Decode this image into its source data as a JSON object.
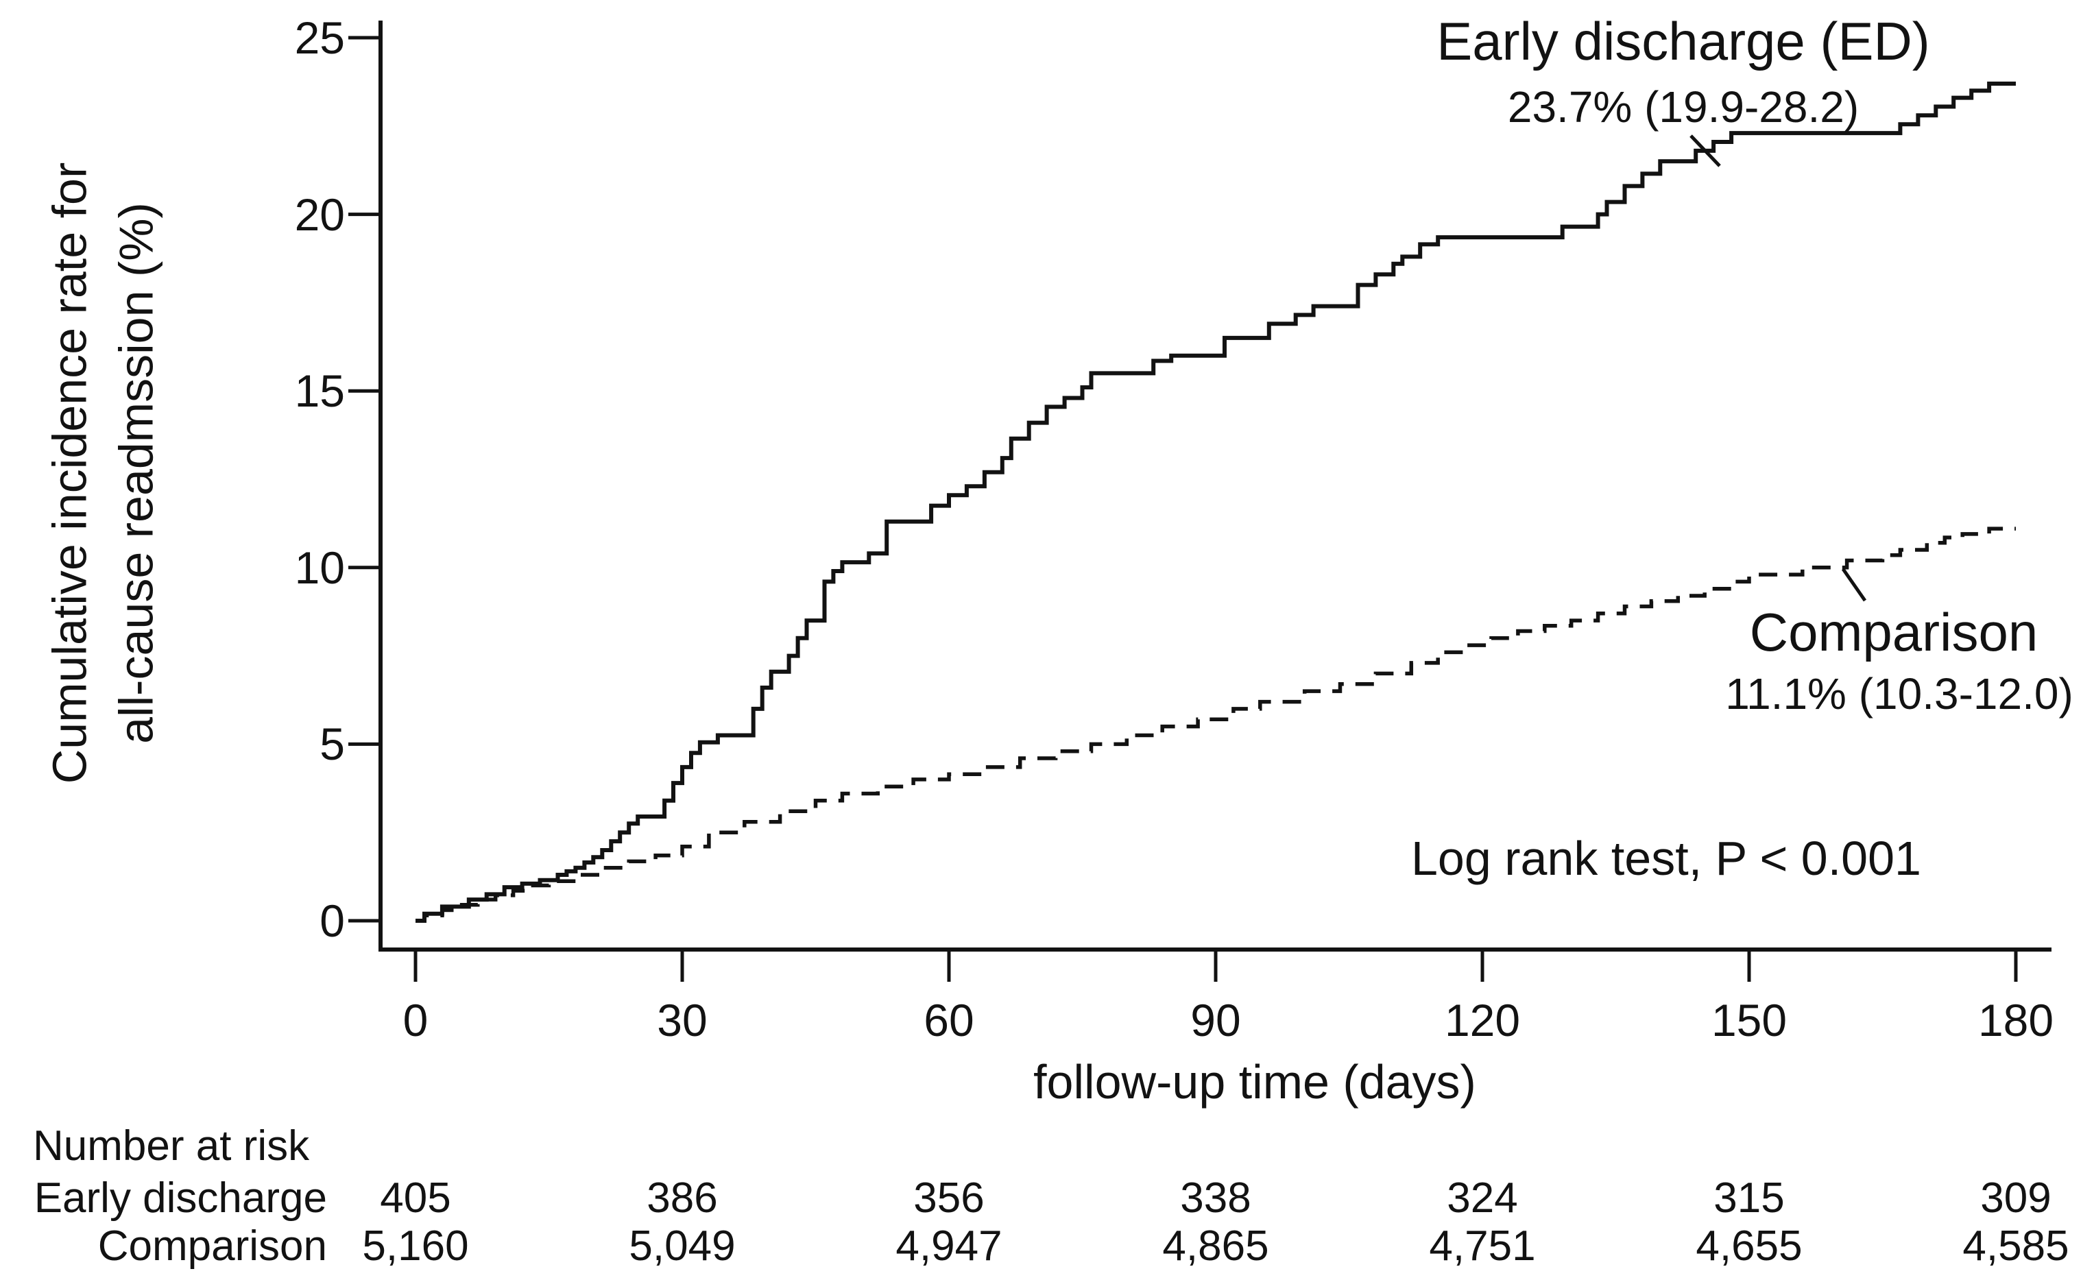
{
  "chart_data": {
    "type": "line",
    "variant": "cumulative-incidence-step-curves",
    "title": "",
    "xlabel": "follow-up time (days)",
    "ylabel": "Cumulative incidence rate for all-cause readmssion (%)",
    "ylabel_lines": [
      "Cumulative incidence rate for",
      "all-cause readmssion (%)"
    ],
    "xlim": [
      0,
      180
    ],
    "ylim": [
      0,
      25
    ],
    "x_ticks": [
      0,
      30,
      60,
      90,
      120,
      150,
      180
    ],
    "y_ticks": [
      0,
      5,
      10,
      15,
      20,
      25
    ],
    "grid": false,
    "legend_position": "annotated-on-plot",
    "line_color": "#121212",
    "annotations": {
      "ed_label": "Early discharge (ED)",
      "ed_value": "23.7% (19.9-28.2)",
      "comparison_label": "Comparison",
      "comparison_value": "11.1% (10.3-12.0)",
      "stat_test": "Log rank test, P < 0.001"
    },
    "series": [
      {
        "name": "Early discharge (ED)",
        "line_style": "solid",
        "color": "#121212",
        "estimate_at_180": 23.7,
        "ci_95": [
          19.9,
          28.2
        ],
        "points": [
          [
            0,
            0
          ],
          [
            1,
            0.2
          ],
          [
            3,
            0.4
          ],
          [
            6,
            0.6
          ],
          [
            8,
            0.75
          ],
          [
            10,
            0.95
          ],
          [
            12,
            1.05
          ],
          [
            14,
            1.15
          ],
          [
            16,
            1.3
          ],
          [
            17,
            1.4
          ],
          [
            18,
            1.5
          ],
          [
            19,
            1.65
          ],
          [
            20,
            1.8
          ],
          [
            21,
            2.0
          ],
          [
            22,
            2.25
          ],
          [
            23,
            2.5
          ],
          [
            24,
            2.75
          ],
          [
            25,
            2.95
          ],
          [
            28,
            3.4
          ],
          [
            29,
            3.9
          ],
          [
            30,
            4.35
          ],
          [
            31,
            4.75
          ],
          [
            32,
            5.05
          ],
          [
            34,
            5.25
          ],
          [
            38,
            6.0
          ],
          [
            39,
            6.6
          ],
          [
            40,
            7.05
          ],
          [
            42,
            7.5
          ],
          [
            43,
            8.0
          ],
          [
            44,
            8.5
          ],
          [
            46,
            9.6
          ],
          [
            47,
            9.9
          ],
          [
            48,
            10.15
          ],
          [
            51,
            10.4
          ],
          [
            53,
            11.3
          ],
          [
            58,
            11.75
          ],
          [
            60,
            12.05
          ],
          [
            62,
            12.3
          ],
          [
            64,
            12.7
          ],
          [
            66,
            13.1
          ],
          [
            67,
            13.65
          ],
          [
            69,
            14.1
          ],
          [
            71,
            14.55
          ],
          [
            73,
            14.8
          ],
          [
            75,
            15.1
          ],
          [
            76,
            15.5
          ],
          [
            83,
            15.85
          ],
          [
            85,
            16.0
          ],
          [
            91,
            16.5
          ],
          [
            96,
            16.9
          ],
          [
            99,
            17.15
          ],
          [
            101,
            17.4
          ],
          [
            106,
            18.0
          ],
          [
            108,
            18.3
          ],
          [
            110,
            18.6
          ],
          [
            111,
            18.8
          ],
          [
            113,
            19.15
          ],
          [
            115,
            19.35
          ],
          [
            129,
            19.65
          ],
          [
            133,
            20.0
          ],
          [
            134,
            20.35
          ],
          [
            136,
            20.8
          ],
          [
            138,
            21.15
          ],
          [
            140,
            21.5
          ],
          [
            144,
            21.8
          ],
          [
            146,
            22.05
          ],
          [
            148,
            22.3
          ],
          [
            167,
            22.55
          ],
          [
            169,
            22.8
          ],
          [
            171,
            23.05
          ],
          [
            173,
            23.3
          ],
          [
            175,
            23.5
          ],
          [
            177,
            23.7
          ],
          [
            180,
            23.7
          ]
        ]
      },
      {
        "name": "Comparison",
        "line_style": "dashed",
        "color": "#121212",
        "estimate_at_180": 11.1,
        "ci_95": [
          10.3,
          12.0
        ],
        "points": [
          [
            0,
            0
          ],
          [
            1,
            0.15
          ],
          [
            3,
            0.3
          ],
          [
            5,
            0.45
          ],
          [
            7,
            0.6
          ],
          [
            9,
            0.72
          ],
          [
            11,
            0.85
          ],
          [
            13,
            1.0
          ],
          [
            15,
            1.12
          ],
          [
            18,
            1.3
          ],
          [
            21,
            1.5
          ],
          [
            24,
            1.68
          ],
          [
            27,
            1.85
          ],
          [
            30,
            2.1
          ],
          [
            33,
            2.5
          ],
          [
            37,
            2.8
          ],
          [
            41,
            3.1
          ],
          [
            45,
            3.4
          ],
          [
            48,
            3.6
          ],
          [
            52,
            3.8
          ],
          [
            56,
            4.0
          ],
          [
            60,
            4.15
          ],
          [
            64,
            4.35
          ],
          [
            68,
            4.6
          ],
          [
            72,
            4.8
          ],
          [
            76,
            5.0
          ],
          [
            80,
            5.25
          ],
          [
            84,
            5.5
          ],
          [
            88,
            5.7
          ],
          [
            92,
            6.0
          ],
          [
            95,
            6.2
          ],
          [
            100,
            6.5
          ],
          [
            104,
            6.7
          ],
          [
            108,
            7.0
          ],
          [
            112,
            7.3
          ],
          [
            115,
            7.6
          ],
          [
            118,
            7.8
          ],
          [
            121,
            8.0
          ],
          [
            124,
            8.2
          ],
          [
            127,
            8.35
          ],
          [
            130,
            8.5
          ],
          [
            133,
            8.7
          ],
          [
            136,
            8.9
          ],
          [
            139,
            9.05
          ],
          [
            142,
            9.2
          ],
          [
            145,
            9.4
          ],
          [
            148,
            9.6
          ],
          [
            150,
            9.8
          ],
          [
            156,
            10.0
          ],
          [
            161,
            10.2
          ],
          [
            165,
            10.35
          ],
          [
            167,
            10.5
          ],
          [
            170,
            10.7
          ],
          [
            172,
            10.85
          ],
          [
            174,
            10.95
          ],
          [
            177,
            11.1
          ],
          [
            180,
            11.1
          ]
        ]
      }
    ],
    "number_at_risk": {
      "header": "Number at risk",
      "time_points": [
        0,
        30,
        60,
        90,
        120,
        150,
        180
      ],
      "rows": [
        {
          "label": "Early discharge",
          "values": [
            "405",
            "386",
            "356",
            "338",
            "324",
            "315",
            "309"
          ]
        },
        {
          "label": "Comparison",
          "values": [
            "5,160",
            "5,049",
            "4,947",
            "4,865",
            "4,751",
            "4,655",
            "4,585"
          ]
        }
      ]
    }
  }
}
